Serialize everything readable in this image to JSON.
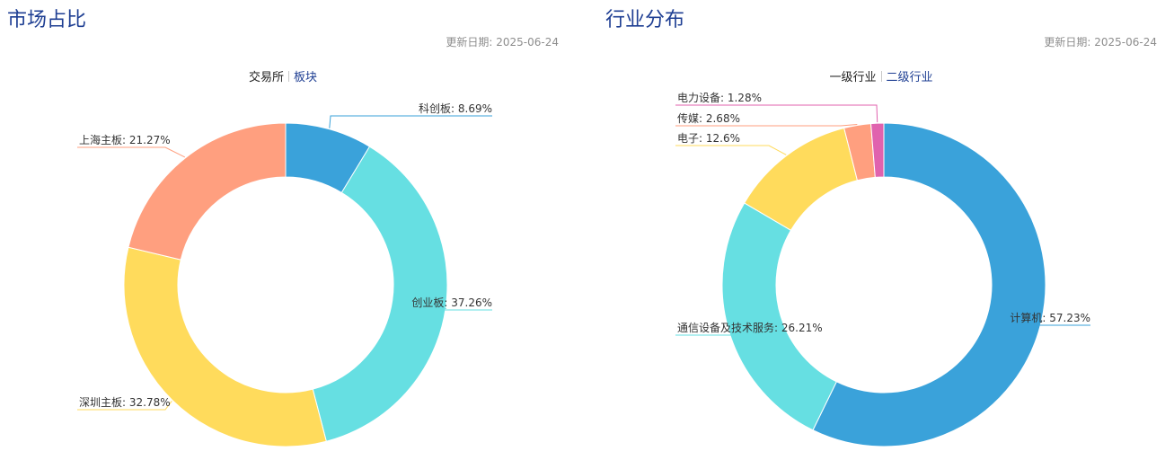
{
  "market": {
    "title": "市场占比",
    "update_label": "更新日期:",
    "update_date": "2025-06-24",
    "tabs": [
      {
        "label": "交易所",
        "active": true
      },
      {
        "label": "板块",
        "active": false
      }
    ]
  },
  "industry": {
    "title": "行业分布",
    "update_label": "更新日期:",
    "update_date": "2025-06-24",
    "tabs": [
      {
        "label": "一级行业",
        "active": true
      },
      {
        "label": "二级行业",
        "active": false
      }
    ]
  },
  "colors": {
    "title": "#1f3f93",
    "blue": "#3aa2da",
    "cyan": "#66dfe2",
    "yellow": "#ffdb5c",
    "salmon": "#ff9f7f",
    "pink": "#e062ae"
  },
  "chart_data": [
    {
      "type": "pie",
      "title": "市场占比",
      "donut": true,
      "slices": [
        {
          "name": "科创板",
          "value": 8.69,
          "label": "科创板: 8.69%",
          "color": "#3aa2da"
        },
        {
          "name": "创业板",
          "value": 37.26,
          "label": "创业板: 37.26%",
          "color": "#66dfe2"
        },
        {
          "name": "深圳主板",
          "value": 32.78,
          "label": "深圳主板: 32.78%",
          "color": "#ffdb5c"
        },
        {
          "name": "上海主板",
          "value": 21.27,
          "label": "上海主板: 21.27%",
          "color": "#ff9f7f"
        }
      ]
    },
    {
      "type": "pie",
      "title": "行业分布",
      "donut": true,
      "slices": [
        {
          "name": "计算机",
          "value": 57.23,
          "label": "计算机: 57.23%",
          "color": "#3aa2da"
        },
        {
          "name": "通信设备及技术服务",
          "value": 26.21,
          "label": "通信设备及技术服务: 26.21%",
          "color": "#66dfe2"
        },
        {
          "name": "电子",
          "value": 12.6,
          "label": "电子: 12.6%",
          "color": "#ffdb5c"
        },
        {
          "name": "传媒",
          "value": 2.68,
          "label": "传媒: 2.68%",
          "color": "#ff9f7f"
        },
        {
          "name": "电力设备",
          "value": 1.28,
          "label": "电力设备: 1.28%",
          "color": "#e062ae"
        }
      ]
    }
  ]
}
